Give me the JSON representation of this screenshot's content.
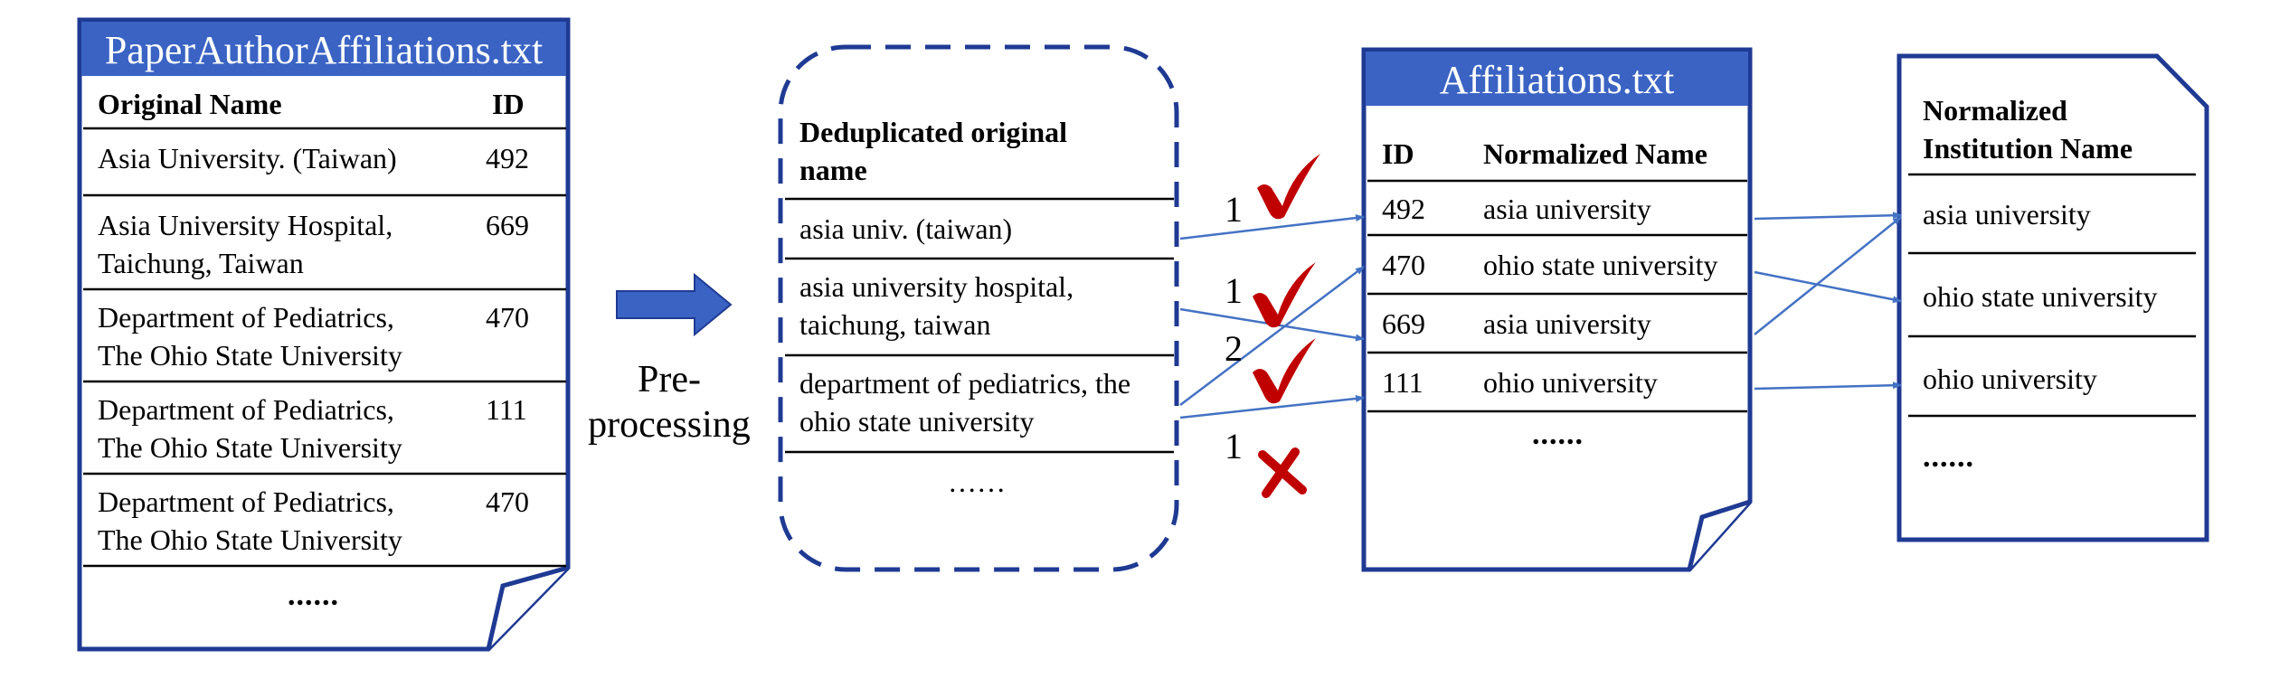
{
  "paper_table": {
    "title": "PaperAuthorAffiliations.txt",
    "headers": {
      "name": "Original Name",
      "id": "ID"
    },
    "rows": [
      {
        "name_lines": [
          "Asia University.  (Taiwan)"
        ],
        "id": "492"
      },
      {
        "name_lines": [
          "Asia University Hospital,",
          "Taichung, Taiwan"
        ],
        "id": "669"
      },
      {
        "name_lines": [
          "Department of Pediatrics,",
          "The Ohio State University"
        ],
        "id": "470"
      },
      {
        "name_lines": [
          "Department of Pediatrics,",
          "The Ohio State University"
        ],
        "id": "111"
      },
      {
        "name_lines": [
          "Department of Pediatrics,",
          "The Ohio State University"
        ],
        "id": "470"
      }
    ],
    "ellipsis": "......"
  },
  "preprocessing": {
    "label_line1": "Pre-",
    "label_line2": "processing"
  },
  "dedup_box": {
    "header_lines": [
      "Deduplicated original",
      "name"
    ],
    "rows": [
      [
        "asia univ. (taiwan)"
      ],
      [
        "asia university hospital,",
        "taichung, taiwan"
      ],
      [
        "department of pediatrics, the",
        "ohio state university"
      ]
    ],
    "ellipsis": "……"
  },
  "match_marks": [
    {
      "count": "1",
      "result": "check"
    },
    {
      "count": "1",
      "result": "check"
    },
    {
      "count": "2",
      "result": "check"
    },
    {
      "count": "1",
      "result": "cross"
    }
  ],
  "affiliations_table": {
    "title": "Affiliations.txt",
    "headers": {
      "id": "ID",
      "name": "Normalized Name"
    },
    "rows": [
      {
        "id": "492",
        "name": "asia university"
      },
      {
        "id": "470",
        "name": "ohio state university"
      },
      {
        "id": "669",
        "name": "asia university"
      },
      {
        "id": "111",
        "name": "ohio university"
      }
    ],
    "ellipsis": "......"
  },
  "normalized_table": {
    "header_lines": [
      "Normalized",
      "Institution Name"
    ],
    "rows": [
      "asia university",
      "ohio state university",
      "ohio university"
    ],
    "ellipsis": "......"
  },
  "colors": {
    "navy": "#1F3A93",
    "header_fill": "#3A63C4",
    "arrow": "#4472C4",
    "mark": "#C00000"
  }
}
